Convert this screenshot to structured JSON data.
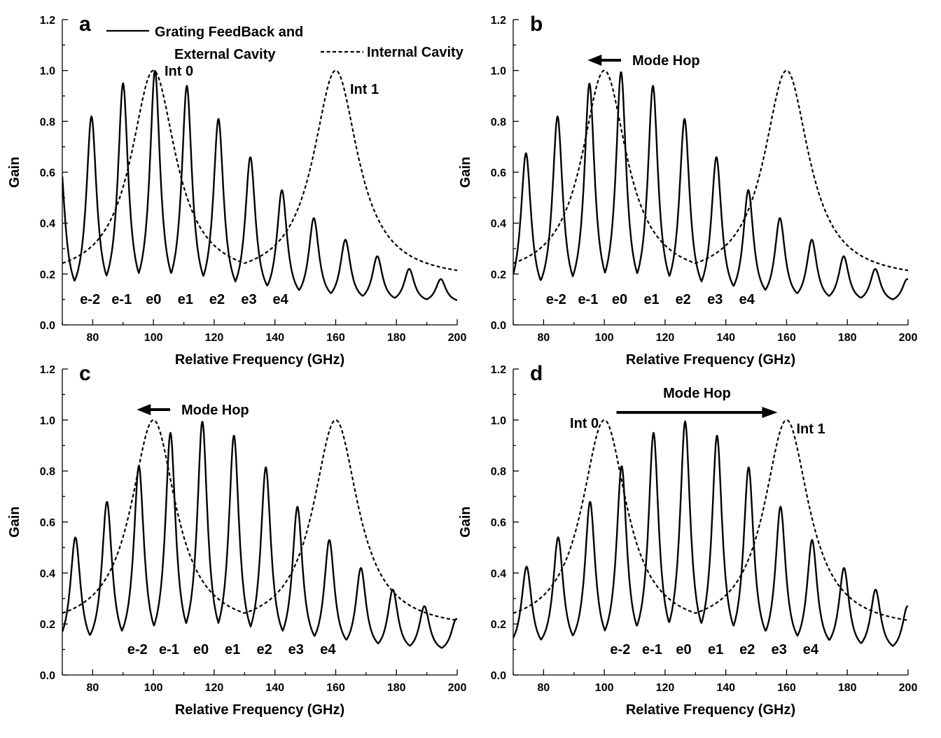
{
  "chart_data": [
    {
      "type": "line",
      "panel": "a",
      "xlabel": "Relative Frequency (GHz)",
      "ylabel": "Gain",
      "xlim": [
        70,
        200
      ],
      "ylim": [
        0,
        1.2
      ],
      "xticks": [
        80,
        100,
        120,
        140,
        160,
        180,
        200
      ],
      "yticks": [
        0.0,
        0.2,
        0.4,
        0.6,
        0.8,
        1.0,
        1.2
      ],
      "ytick_labels": [
        "0.0",
        "0.2",
        "0.4",
        "0.6",
        "0.8",
        "1.0",
        "1.2"
      ],
      "legend": {
        "placement": "top",
        "solid_label_line1": "Grating FeedBack and",
        "solid_label_line2": "External Cavity",
        "dashed_label": "Internal Cavity"
      },
      "series": [
        {
          "name": "Grating FeedBack and External Cavity",
          "style": "solid",
          "peaks": [
            {
              "x": 69.1,
              "y": 0.68
            },
            {
              "x": 79.6,
              "y": 0.82
            },
            {
              "x": 90.0,
              "y": 0.95
            },
            {
              "x": 100.5,
              "y": 1.0
            },
            {
              "x": 111.0,
              "y": 0.94
            },
            {
              "x": 121.4,
              "y": 0.81
            },
            {
              "x": 131.9,
              "y": 0.66
            },
            {
              "x": 142.3,
              "y": 0.53
            },
            {
              "x": 152.8,
              "y": 0.42
            },
            {
              "x": 163.2,
              "y": 0.335
            },
            {
              "x": 173.7,
              "y": 0.27
            },
            {
              "x": 184.2,
              "y": 0.22
            },
            {
              "x": 194.6,
              "y": 0.18
            }
          ]
        },
        {
          "name": "Internal Cavity",
          "style": "dashed",
          "peaks": [
            {
              "x": 100,
              "y": 1.0
            },
            {
              "x": 160,
              "y": 1.0
            }
          ]
        }
      ],
      "mode_labels": [
        {
          "text": "e-2",
          "x": 79.6
        },
        {
          "text": "e-1",
          "x": 90.0
        },
        {
          "text": "e0",
          "x": 100.5
        },
        {
          "text": "e1",
          "x": 111.0
        },
        {
          "text": "e2",
          "x": 121.4
        },
        {
          "text": "e3",
          "x": 131.9
        },
        {
          "text": "e4",
          "x": 142.3
        }
      ],
      "annotations": [
        {
          "text": "Int 0"
        },
        {
          "text": "Int 1"
        }
      ]
    },
    {
      "type": "line",
      "panel": "b",
      "xlabel": "Relative Frequency (GHz)",
      "ylabel": "Gain",
      "xlim": [
        70,
        200
      ],
      "ylim": [
        0,
        1.2
      ],
      "xticks": [
        80,
        100,
        120,
        140,
        160,
        180,
        200
      ],
      "yticks": [
        0.0,
        0.2,
        0.4,
        0.6,
        0.8,
        1.0,
        1.2
      ],
      "ytick_labels": [
        "0.0",
        "0.2",
        "0.4",
        "0.6",
        "0.8",
        "1.0",
        "1.2"
      ],
      "series": [
        {
          "name": "Grating FeedBack and External Cavity",
          "style": "solid",
          "peaks": [
            {
              "x": 74.2,
              "y": 0.675
            },
            {
              "x": 84.6,
              "y": 0.82
            },
            {
              "x": 95.1,
              "y": 0.95
            },
            {
              "x": 105.5,
              "y": 0.995
            },
            {
              "x": 116.0,
              "y": 0.94
            },
            {
              "x": 126.4,
              "y": 0.81
            },
            {
              "x": 136.9,
              "y": 0.66
            },
            {
              "x": 147.4,
              "y": 0.53
            },
            {
              "x": 157.8,
              "y": 0.42
            },
            {
              "x": 168.3,
              "y": 0.335
            },
            {
              "x": 178.8,
              "y": 0.27
            },
            {
              "x": 189.2,
              "y": 0.22
            },
            {
              "x": 199.7,
              "y": 0.18
            }
          ]
        },
        {
          "name": "Internal Cavity",
          "style": "dashed",
          "peaks": [
            {
              "x": 100,
              "y": 1.0
            },
            {
              "x": 160,
              "y": 1.0
            }
          ]
        }
      ],
      "mode_labels": [
        {
          "text": "e-2",
          "x": 84.6
        },
        {
          "text": "e-1",
          "x": 95.1
        },
        {
          "text": "e0",
          "x": 105.5
        },
        {
          "text": "e1",
          "x": 116.0
        },
        {
          "text": "e2",
          "x": 126.4
        },
        {
          "text": "e3",
          "x": 136.9
        },
        {
          "text": "e4",
          "x": 147.4
        }
      ],
      "annotations": [
        {
          "text": "Mode Hop",
          "arrow": "left"
        }
      ]
    },
    {
      "type": "line",
      "panel": "c",
      "xlabel": "Relative Frequency (GHz)",
      "ylabel": "Gain",
      "xlim": [
        70,
        200
      ],
      "ylim": [
        0,
        1.2
      ],
      "xticks": [
        80,
        100,
        120,
        140,
        160,
        180,
        200
      ],
      "yticks": [
        0.0,
        0.2,
        0.4,
        0.6,
        0.8,
        1.0,
        1.2
      ],
      "ytick_labels": [
        "0.0",
        "0.2",
        "0.4",
        "0.6",
        "0.8",
        "1.0",
        "1.2"
      ],
      "series": [
        {
          "name": "Grating FeedBack and External Cavity",
          "style": "solid",
          "peaks": [
            {
              "x": 74.3,
              "y": 0.54
            },
            {
              "x": 84.7,
              "y": 0.68
            },
            {
              "x": 95.2,
              "y": 0.82
            },
            {
              "x": 105.6,
              "y": 0.95
            },
            {
              "x": 116.1,
              "y": 0.995
            },
            {
              "x": 126.5,
              "y": 0.94
            },
            {
              "x": 137.0,
              "y": 0.815
            },
            {
              "x": 147.4,
              "y": 0.66
            },
            {
              "x": 157.9,
              "y": 0.53
            },
            {
              "x": 168.3,
              "y": 0.42
            },
            {
              "x": 178.8,
              "y": 0.335
            },
            {
              "x": 189.2,
              "y": 0.27
            },
            {
              "x": 199.7,
              "y": 0.22
            }
          ]
        },
        {
          "name": "Internal Cavity",
          "style": "dashed",
          "peaks": [
            {
              "x": 100,
              "y": 1.0
            },
            {
              "x": 160,
              "y": 1.0
            }
          ]
        }
      ],
      "mode_labels": [
        {
          "text": "e-2",
          "x": 95.2
        },
        {
          "text": "e-1",
          "x": 105.6
        },
        {
          "text": "e0",
          "x": 116.1
        },
        {
          "text": "e1",
          "x": 126.5
        },
        {
          "text": "e2",
          "x": 137.0
        },
        {
          "text": "e3",
          "x": 147.4
        },
        {
          "text": "e4",
          "x": 157.9
        }
      ],
      "annotations": [
        {
          "text": "Mode Hop",
          "arrow": "left"
        }
      ]
    },
    {
      "type": "line",
      "panel": "d",
      "xlabel": "Relative Frequency (GHz)",
      "ylabel": "Gain",
      "xlim": [
        70,
        200
      ],
      "ylim": [
        0,
        1.2
      ],
      "xticks": [
        80,
        100,
        120,
        140,
        160,
        180,
        200
      ],
      "yticks": [
        0.0,
        0.2,
        0.4,
        0.6,
        0.8,
        1.0,
        1.2
      ],
      "ytick_labels": [
        "0.0",
        "0.2",
        "0.4",
        "0.6",
        "0.8",
        "1.0",
        "1.2"
      ],
      "series": [
        {
          "name": "Grating FeedBack and External Cavity",
          "style": "solid",
          "peaks": [
            {
              "x": 74.4,
              "y": 0.425
            },
            {
              "x": 84.8,
              "y": 0.54
            },
            {
              "x": 95.3,
              "y": 0.68
            },
            {
              "x": 105.7,
              "y": 0.82
            },
            {
              "x": 116.2,
              "y": 0.95
            },
            {
              "x": 126.6,
              "y": 0.995
            },
            {
              "x": 137.1,
              "y": 0.94
            },
            {
              "x": 147.5,
              "y": 0.815
            },
            {
              "x": 158.0,
              "y": 0.66
            },
            {
              "x": 168.4,
              "y": 0.53
            },
            {
              "x": 178.9,
              "y": 0.42
            },
            {
              "x": 189.3,
              "y": 0.335
            },
            {
              "x": 199.8,
              "y": 0.27
            }
          ]
        },
        {
          "name": "Internal Cavity",
          "style": "dashed",
          "peaks": [
            {
              "x": 100,
              "y": 1.0
            },
            {
              "x": 160,
              "y": 1.0
            }
          ]
        }
      ],
      "mode_labels": [
        {
          "text": "e-2",
          "x": 105.7
        },
        {
          "text": "e-1",
          "x": 116.2
        },
        {
          "text": "e0",
          "x": 126.6
        },
        {
          "text": "e1",
          "x": 137.1
        },
        {
          "text": "e2",
          "x": 147.5
        },
        {
          "text": "e3",
          "x": 158.0
        },
        {
          "text": "e4",
          "x": 168.4
        }
      ],
      "annotations": [
        {
          "text": "Mode Hop",
          "arrow": "right"
        },
        {
          "text": "Int 0"
        },
        {
          "text": "Int 1"
        }
      ]
    }
  ]
}
